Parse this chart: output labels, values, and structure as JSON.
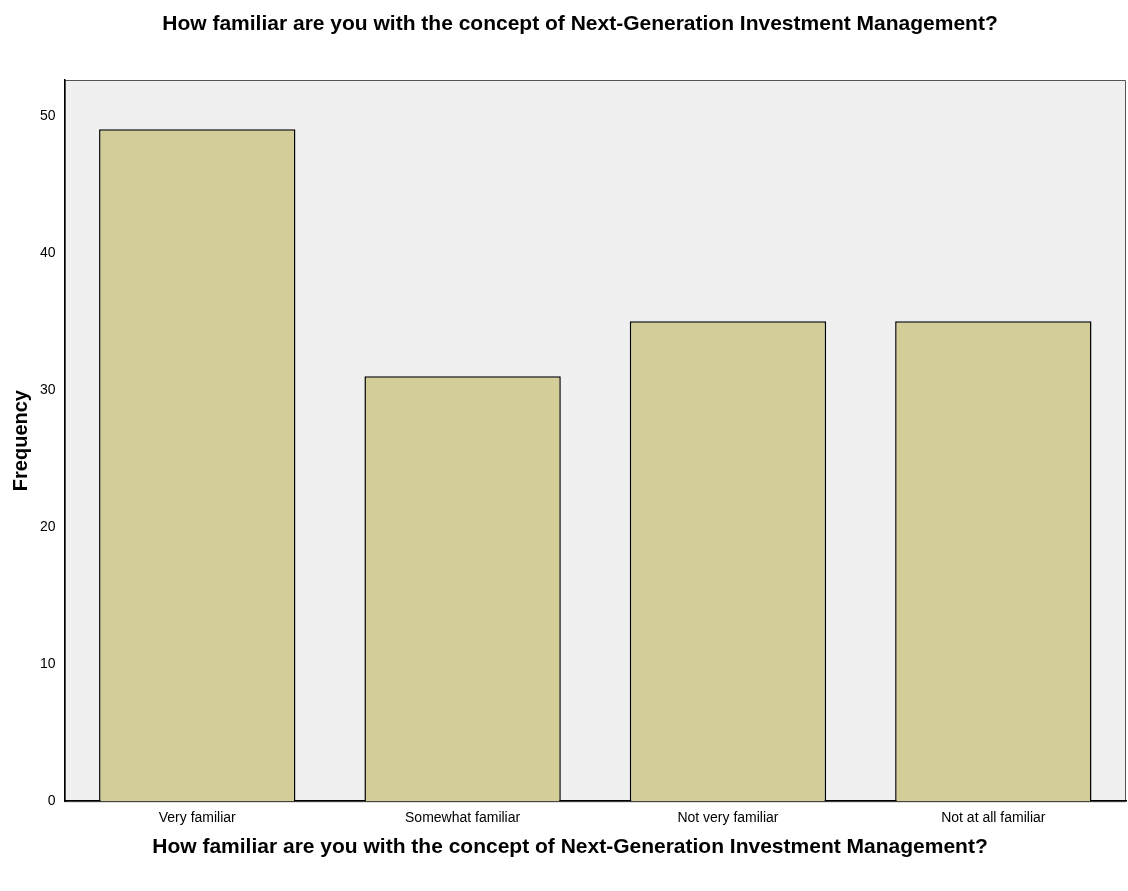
{
  "chart_data": {
    "type": "bar",
    "title": "How familiar are you with the concept of Next-Generation Investment Management?",
    "xlabel": "How familiar are you with the concept of Next-Generation Investment Management?",
    "ylabel": "Frequency",
    "categories": [
      "Very familiar",
      "Somewhat familiar",
      "Not very familiar",
      "Not at all familiar"
    ],
    "values": [
      49,
      31,
      35,
      35
    ],
    "color": "#d3ce97",
    "ylim": [
      0,
      52.6
    ],
    "yticks": [
      0,
      10,
      20,
      30,
      40,
      50
    ],
    "grid": false,
    "legend": false
  }
}
